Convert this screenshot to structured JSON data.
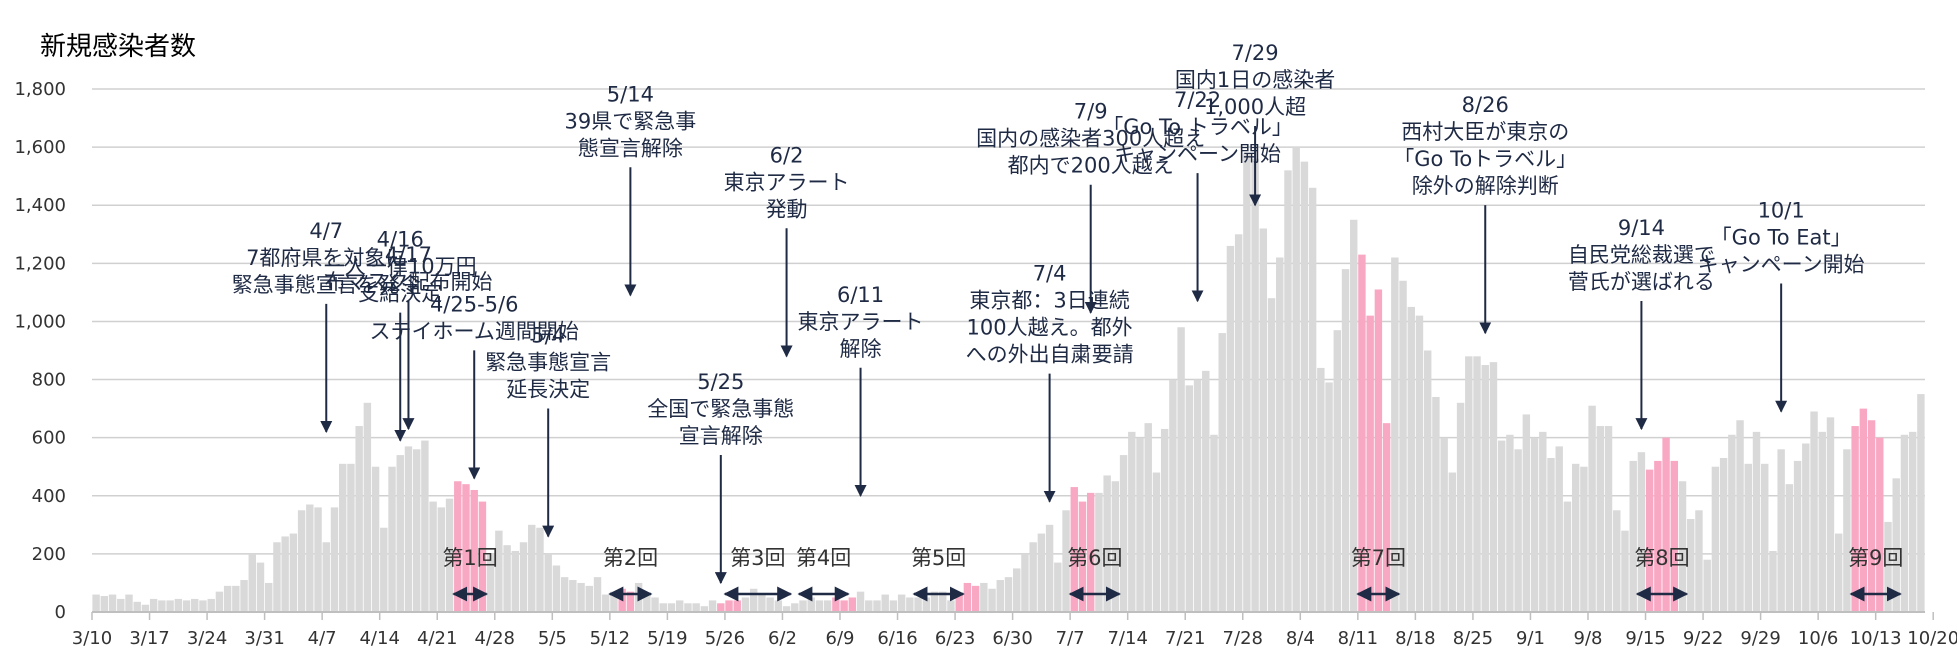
{
  "chart_data": {
    "type": "bar",
    "title": "",
    "ylabel": "新規感染者数",
    "xlabel": "",
    "ylim": [
      0,
      1800
    ],
    "yticks": [
      "0",
      "200",
      "400",
      "600",
      "800",
      "1,000",
      "1,200",
      "1,400",
      "1,600",
      "1,800"
    ],
    "grid": true,
    "xtick_labels": [
      "3/10",
      "3/17",
      "3/24",
      "3/31",
      "4/7",
      "4/14",
      "4/21",
      "4/28",
      "5/5",
      "5/12",
      "5/19",
      "5/26",
      "6/2",
      "6/9",
      "6/16",
      "6/23",
      "6/30",
      "7/7",
      "7/14",
      "7/21",
      "7/28",
      "8/4",
      "8/11",
      "8/18",
      "8/25",
      "9/1",
      "9/8",
      "9/15",
      "9/22",
      "9/29",
      "10/6",
      "10/13",
      "10/20"
    ],
    "start_date": "3/10",
    "colors": {
      "normal": "#d9d9d9",
      "highlight": "#f9a8c4",
      "grid": "#d0d0d0",
      "text": "#1f2a44"
    },
    "values": [
      60,
      55,
      60,
      45,
      60,
      35,
      25,
      45,
      40,
      40,
      45,
      40,
      45,
      40,
      45,
      70,
      90,
      90,
      110,
      200,
      170,
      100,
      240,
      260,
      270,
      350,
      370,
      360,
      240,
      360,
      510,
      510,
      640,
      720,
      500,
      290,
      500,
      540,
      570,
      560,
      590,
      380,
      360,
      390,
      450,
      440,
      420,
      380,
      200,
      280,
      230,
      210,
      240,
      300,
      290,
      200,
      160,
      120,
      110,
      100,
      90,
      120,
      60,
      70,
      80,
      70,
      100,
      60,
      50,
      30,
      30,
      40,
      30,
      30,
      20,
      40,
      30,
      40,
      40,
      50,
      80,
      60,
      50,
      40,
      20,
      30,
      40,
      50,
      40,
      40,
      50,
      40,
      50,
      70,
      40,
      40,
      60,
      40,
      60,
      50,
      50,
      50,
      70,
      70,
      40,
      60,
      100,
      90,
      100,
      80,
      110,
      120,
      150,
      200,
      240,
      270,
      300,
      170,
      350,
      430,
      380,
      410,
      410,
      470,
      450,
      540,
      620,
      600,
      650,
      480,
      630,
      800,
      980,
      780,
      800,
      830,
      610,
      960,
      1260,
      1300,
      1580,
      1560,
      1320,
      1080,
      1220,
      1520,
      1600,
      1550,
      1460,
      840,
      790,
      970,
      1180,
      1350,
      1230,
      1020,
      1110,
      650,
      1220,
      1140,
      1050,
      1020,
      900,
      740,
      600,
      480,
      720,
      880,
      880,
      850,
      860,
      590,
      610,
      560,
      680,
      600,
      620,
      530,
      570,
      380,
      510,
      500,
      710,
      640,
      640,
      350,
      280,
      520,
      550,
      490,
      520,
      600,
      520,
      450,
      320,
      350,
      180,
      500,
      530,
      610,
      660,
      510,
      620,
      510,
      210,
      560,
      440,
      520,
      580,
      690,
      620,
      670,
      270,
      560,
      640,
      700,
      660,
      600,
      310,
      460,
      610,
      620,
      750
    ],
    "highlighted_ranges": [
      {
        "from": 44,
        "to": 47
      },
      {
        "from": 64,
        "to": 65
      },
      {
        "from": 76,
        "to": 78
      },
      {
        "from": 90,
        "to": 92
      },
      {
        "from": 105,
        "to": 107
      },
      {
        "from": 119,
        "to": 121
      },
      {
        "from": 154,
        "to": 157
      },
      {
        "from": 189,
        "to": 192
      },
      {
        "from": 214,
        "to": 217
      }
    ],
    "waves": [
      {
        "label": "第1回",
        "from": 44,
        "to": 47
      },
      {
        "label": "第2回",
        "from": 63,
        "to": 67
      },
      {
        "label": "第3回",
        "from": 77,
        "to": 84
      },
      {
        "label": "第4回",
        "from": 86,
        "to": 91
      },
      {
        "label": "第5回",
        "from": 100,
        "to": 105
      },
      {
        "label": "第6回",
        "from": 119,
        "to": 124
      },
      {
        "label": "第7回",
        "from": 154,
        "to": 158
      },
      {
        "label": "第8回",
        "from": 188,
        "to": 193
      },
      {
        "label": "第9回",
        "from": 214,
        "to": 219
      }
    ],
    "annotations": [
      {
        "lines": [
          "4/7",
          "7都府県を対象に",
          "緊急事態宣言を発令"
        ],
        "index": 28,
        "arrow_to": 620
      },
      {
        "lines": [
          "4/16",
          "一人一律10万円",
          "支給決定"
        ],
        "index": 37,
        "arrow_to": 590
      },
      {
        "lines": [
          "4/17",
          "布マスク配布開始"
        ],
        "index": 38,
        "arrow_to": 630
      },
      {
        "lines": [
          "4/25-5/6",
          "ステイホーム週間開始"
        ],
        "index": 46,
        "arrow_to": 460
      },
      {
        "lines": [
          "5/4",
          "緊急事態宣言",
          "延長決定"
        ],
        "index": 55,
        "arrow_to": 260
      },
      {
        "lines": [
          "5/14",
          "39県で緊急事",
          "態宣言解除"
        ],
        "index": 65,
        "arrow_to": 1090
      },
      {
        "lines": [
          "5/25",
          "全国で緊急事態",
          "宣言解除"
        ],
        "index": 76,
        "arrow_to": 100
      },
      {
        "lines": [
          "6/2",
          "東京アラート",
          "発動"
        ],
        "index": 84,
        "arrow_to": 880
      },
      {
        "lines": [
          "6/11",
          "東京アラート",
          "解除"
        ],
        "index": 93,
        "arrow_to": 400
      },
      {
        "lines": [
          "7/4",
          "東京都：3日連続",
          "100人越え。都外",
          "への外出自粛要請"
        ],
        "index": 116,
        "arrow_to": 380
      },
      {
        "lines": [
          "7/9",
          "国内の感染者300人超え",
          "都内で200人越え"
        ],
        "index": 121,
        "arrow_to": 1030
      },
      {
        "lines": [
          "7/22",
          "「Go To トラベル」",
          "キャンペーン開始"
        ],
        "index": 134,
        "arrow_to": 1070
      },
      {
        "lines": [
          "7/29",
          "国内1日の感染者",
          "1,000人超"
        ],
        "index": 141,
        "arrow_to": 1400
      },
      {
        "lines": [
          "8/26",
          "西村大臣が東京の",
          "「Go Toトラベル」",
          "除外の解除判断"
        ],
        "index": 169,
        "arrow_to": 960
      },
      {
        "lines": [
          "9/14",
          "自民党総裁選で",
          "菅氏が選ばれる"
        ],
        "index": 188,
        "arrow_to": 630
      },
      {
        "lines": [
          "10/1",
          "「Go To Eat」",
          "キャンペーン開始"
        ],
        "index": 205,
        "arrow_to": 690
      }
    ]
  }
}
